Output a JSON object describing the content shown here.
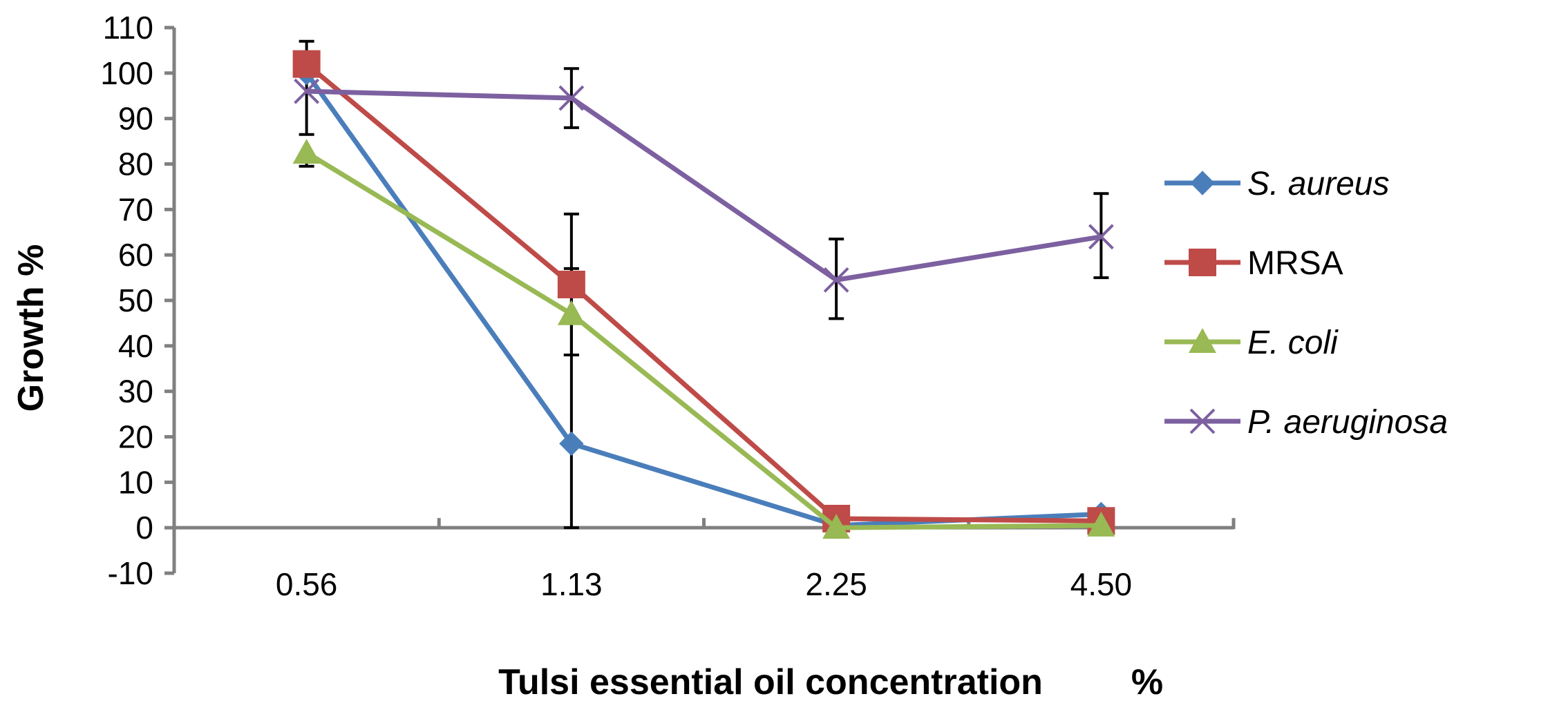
{
  "chart_data": {
    "type": "line",
    "title": "",
    "xlabel": "Tulsi essential oil concentration",
    "xlabel_unit": "%",
    "ylabel": "Growth %",
    "ylim": [
      -10,
      110
    ],
    "yticks": [
      -10,
      0,
      10,
      20,
      30,
      40,
      50,
      60,
      70,
      80,
      90,
      100,
      110
    ],
    "ytick_labels": [
      "-10",
      "0",
      "10",
      "20",
      "30",
      "40",
      "50",
      "60",
      "70",
      "80",
      "90",
      "100",
      "110"
    ],
    "categories": [
      "0.56",
      "1.13",
      "2.25",
      "4.50"
    ],
    "grid": false,
    "legend": "right",
    "series": [
      {
        "name": "S. aureus",
        "italic": true,
        "color": "#4a7ebb",
        "marker": "diamond",
        "values": [
          100,
          18.5,
          0.5,
          3
        ],
        "error_low": [
          null,
          18.5,
          null,
          null
        ],
        "error_high": [
          null,
          19.5,
          null,
          null
        ]
      },
      {
        "name": "MRSA",
        "italic": false,
        "color": "#be4b48",
        "marker": "square",
        "values": [
          102,
          53.5,
          2,
          1.5
        ],
        "error_low": [
          null,
          15.5,
          null,
          null
        ],
        "error_high": [
          null,
          15.5,
          null,
          null
        ]
      },
      {
        "name": "E. coli",
        "italic": true,
        "color": "#98b954",
        "marker": "triangle",
        "values": [
          82.5,
          47,
          0,
          0.5
        ],
        "error_low": [
          3,
          9,
          null,
          null
        ],
        "error_high": [
          null,
          10,
          null,
          null
        ]
      },
      {
        "name": "P. aeruginosa",
        "italic": true,
        "color": "#7d60a0",
        "marker": "x",
        "values": [
          96,
          94.5,
          54.5,
          64
        ],
        "error_low": [
          9.5,
          6.5,
          8.5,
          9
        ],
        "error_high": [
          11,
          6.5,
          9,
          9.5
        ]
      }
    ]
  }
}
